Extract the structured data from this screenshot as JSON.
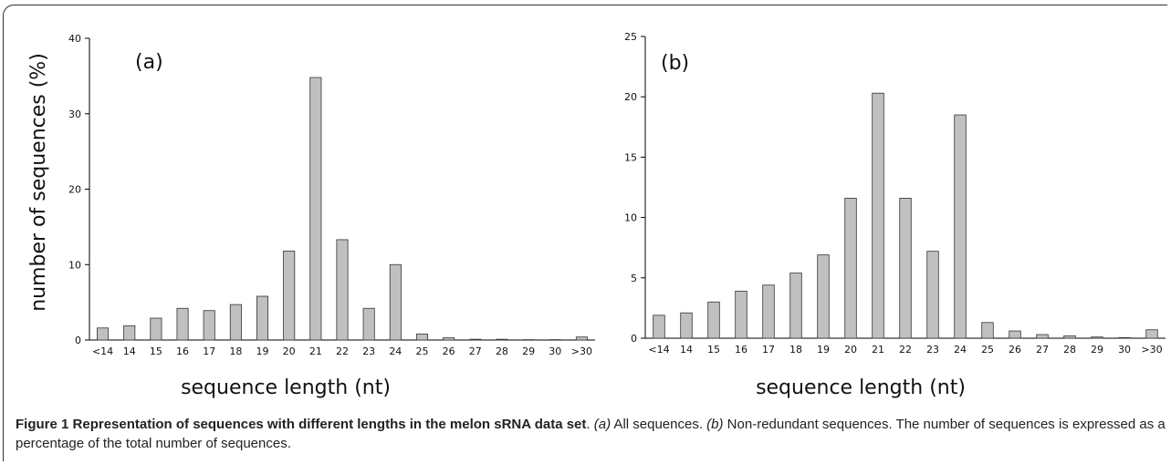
{
  "chart_data": [
    {
      "type": "bar",
      "panel_label": "(a)",
      "xlabel": "sequence length (nt)",
      "ylabel": "number of  sequences (%)",
      "categories": [
        "<14",
        "14",
        "15",
        "16",
        "17",
        "18",
        "19",
        "20",
        "21",
        "22",
        "23",
        "24",
        "25",
        "26",
        "27",
        "28",
        "29",
        "30",
        ">30"
      ],
      "values": [
        1.6,
        1.9,
        2.9,
        4.2,
        3.9,
        4.7,
        5.8,
        11.8,
        34.8,
        13.3,
        4.2,
        10.0,
        0.8,
        0.3,
        0.1,
        0.1,
        0.05,
        0.05,
        0.4
      ],
      "ylim": [
        0,
        40
      ],
      "yticks": [
        0,
        10,
        20,
        30,
        40
      ],
      "bar_color": "#c0c0c0"
    },
    {
      "type": "bar",
      "panel_label": "(b)",
      "xlabel": "sequence length (nt)",
      "ylabel": "",
      "categories": [
        "<14",
        "14",
        "15",
        "16",
        "17",
        "18",
        "19",
        "20",
        "21",
        "22",
        "23",
        "24",
        "25",
        "26",
        "27",
        "28",
        "29",
        "30",
        ">30"
      ],
      "values": [
        1.9,
        2.1,
        3.0,
        3.9,
        4.4,
        5.4,
        6.9,
        11.6,
        20.3,
        11.6,
        7.2,
        18.5,
        1.3,
        0.6,
        0.3,
        0.2,
        0.1,
        0.05,
        0.7
      ],
      "ylim": [
        0,
        25
      ],
      "yticks": [
        0,
        5,
        10,
        15,
        20,
        25
      ],
      "bar_color": "#c0c0c0"
    }
  ],
  "caption": {
    "figure_label": "Figure 1",
    "title": "Representation of sequences with different lengths in the melon sRNA data set",
    "period1": ". ",
    "a_label": "(a)",
    "a_text": " All sequences. ",
    "b_label": "(b)",
    "b_text": " Non-redundant sequences. The number of sequences is expressed as a percentage of the total number of sequences."
  }
}
